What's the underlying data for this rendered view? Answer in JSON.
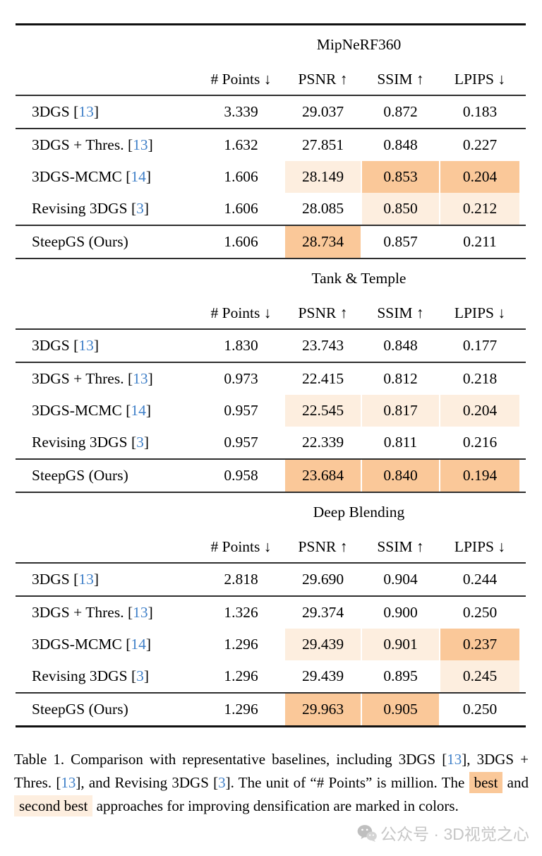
{
  "colors": {
    "best": "#FAC899",
    "second": "#FDEEDF",
    "cite": "#4080C8",
    "rule": "#1F1F1F",
    "watermark": "#C6C6C6"
  },
  "symbols": {
    "lbracket": "[",
    "rbracket": "]"
  },
  "tables": [
    {
      "dataset": "MipNeRF360",
      "columns": [
        "# Points ↓",
        "PSNR ↑",
        "SSIM ↑",
        "LPIPS ↓"
      ],
      "rows": [
        {
          "method": "3DGS ",
          "cite": "13",
          "values": [
            "3.339",
            "29.037",
            "0.872",
            "0.183"
          ],
          "highlights": [
            "",
            "",
            "",
            ""
          ]
        },
        {
          "method": "3DGS + Thres. ",
          "cite": "13",
          "values": [
            "1.632",
            "27.851",
            "0.848",
            "0.227"
          ],
          "highlights": [
            "",
            "",
            "",
            ""
          ]
        },
        {
          "method": "3DGS-MCMC ",
          "cite": "14",
          "values": [
            "1.606",
            "28.149",
            "0.853",
            "0.204"
          ],
          "highlights": [
            "",
            "second",
            "best",
            "best"
          ]
        },
        {
          "method": "Revising 3DGS ",
          "cite": "3",
          "values": [
            "1.606",
            "28.085",
            "0.850",
            "0.212"
          ],
          "highlights": [
            "",
            "",
            "second",
            "second"
          ]
        },
        {
          "method": "SteepGS (Ours)",
          "cite": "",
          "values": [
            "1.606",
            "28.734",
            "0.857",
            "0.211"
          ],
          "highlights": [
            "",
            "best",
            "",
            ""
          ]
        }
      ]
    },
    {
      "dataset": "Tank & Temple",
      "columns": [
        "# Points ↓",
        "PSNR ↑",
        "SSIM ↑",
        "LPIPS ↓"
      ],
      "rows": [
        {
          "method": "3DGS ",
          "cite": "13",
          "values": [
            "1.830",
            "23.743",
            "0.848",
            "0.177"
          ],
          "highlights": [
            "",
            "",
            "",
            ""
          ]
        },
        {
          "method": "3DGS + Thres. ",
          "cite": "13",
          "values": [
            "0.973",
            "22.415",
            "0.812",
            "0.218"
          ],
          "highlights": [
            "",
            "",
            "",
            ""
          ]
        },
        {
          "method": "3DGS-MCMC ",
          "cite": "14",
          "values": [
            "0.957",
            "22.545",
            "0.817",
            "0.204"
          ],
          "highlights": [
            "",
            "second",
            "second",
            "second"
          ]
        },
        {
          "method": "Revising 3DGS ",
          "cite": "3",
          "values": [
            "0.957",
            "22.339",
            "0.811",
            "0.216"
          ],
          "highlights": [
            "",
            "",
            "",
            ""
          ]
        },
        {
          "method": "SteepGS (Ours)",
          "cite": "",
          "values": [
            "0.958",
            "23.684",
            "0.840",
            "0.194"
          ],
          "highlights": [
            "",
            "best",
            "best",
            "best"
          ]
        }
      ]
    },
    {
      "dataset": "Deep Blending",
      "columns": [
        "# Points ↓",
        "PSNR ↑",
        "SSIM ↑",
        "LPIPS ↓"
      ],
      "rows": [
        {
          "method": "3DGS ",
          "cite": "13",
          "values": [
            "2.818",
            "29.690",
            "0.904",
            "0.244"
          ],
          "highlights": [
            "",
            "",
            "",
            ""
          ]
        },
        {
          "method": "3DGS + Thres. ",
          "cite": "13",
          "values": [
            "1.326",
            "29.374",
            "0.900",
            "0.250"
          ],
          "highlights": [
            "",
            "",
            "",
            ""
          ]
        },
        {
          "method": "3DGS-MCMC ",
          "cite": "14",
          "values": [
            "1.296",
            "29.439",
            "0.901",
            "0.237"
          ],
          "highlights": [
            "",
            "second",
            "second",
            "best"
          ]
        },
        {
          "method": "Revising 3DGS ",
          "cite": "3",
          "values": [
            "1.296",
            "29.439",
            "0.895",
            "0.245"
          ],
          "highlights": [
            "",
            "",
            "",
            "second"
          ]
        },
        {
          "method": "SteepGS (Ours)",
          "cite": "",
          "values": [
            "1.296",
            "29.963",
            "0.905",
            "0.250"
          ],
          "highlights": [
            "",
            "best",
            "best",
            ""
          ]
        }
      ]
    }
  ],
  "caption": {
    "segments": [
      {
        "type": "text",
        "text": "Table 1. Comparison with representative baselines, including 3DGS "
      },
      {
        "type": "cite",
        "text": "13"
      },
      {
        "type": "text",
        "text": ", 3DGS + Thres. "
      },
      {
        "type": "cite",
        "text": "13"
      },
      {
        "type": "text",
        "text": ", and Revising 3DGS "
      },
      {
        "type": "cite",
        "text": "3"
      },
      {
        "type": "text",
        "text": ". The unit of “# Points” is million. The "
      },
      {
        "type": "best",
        "text": "best"
      },
      {
        "type": "text",
        "text": " and "
      },
      {
        "type": "second",
        "text": "second best"
      },
      {
        "type": "text",
        "text": " approaches for improving densification are marked in colors."
      }
    ]
  },
  "watermark": {
    "text": "公众号 · 3D视觉之心"
  }
}
